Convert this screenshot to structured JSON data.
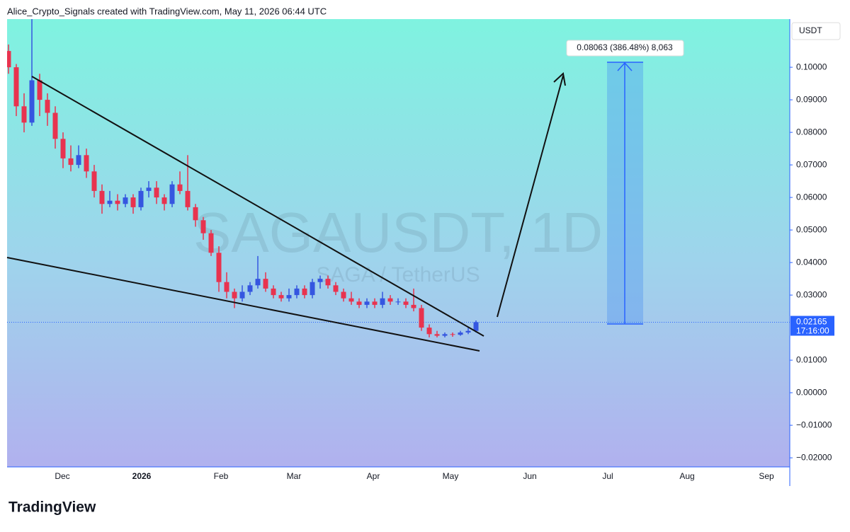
{
  "header": "Alice_Crypto_Signals created with TradingView.com, May 11, 2026 06:44 UTC",
  "logo": "TradingView",
  "chart_data": {
    "type": "candlestick",
    "watermark": "SAGAUSDT, 1D",
    "watermark_subtitle": "SAGA / TetherUS",
    "y_label": "USDT",
    "measure_label": "0.08063 (386.48%) 8,063",
    "price_line": {
      "value": 0.02165,
      "label": "0.02165",
      "time": "17:16:00"
    },
    "up_color": "#3556e0",
    "down_color": "#e8334f",
    "x_labels": [
      "Dec",
      "2026",
      "Feb",
      "Mar",
      "Apr",
      "May",
      "Jun",
      "Jul",
      "Aug",
      "Sep"
    ],
    "ylim": [
      -0.0228,
      0.1148
    ],
    "yticks": [
      {
        "value": 0.1,
        "label": "0.10000"
      },
      {
        "value": 0.09,
        "label": "0.09000"
      },
      {
        "value": 0.08,
        "label": "0.08000"
      },
      {
        "value": 0.07,
        "label": "0.07000"
      },
      {
        "value": 0.06,
        "label": "0.06000"
      },
      {
        "value": 0.05,
        "label": "0.05000"
      },
      {
        "value": 0.04,
        "label": "0.04000"
      },
      {
        "value": 0.03,
        "label": "0.03000"
      },
      {
        "value": 0.01,
        "label": "0.01000"
      },
      {
        "value": 0,
        "label": "0.00000"
      },
      {
        "value": -0.01,
        "label": "−0.01000"
      },
      {
        "value": -0.02,
        "label": "−0.02000"
      }
    ],
    "open": [
      0.105,
      0.1,
      0.088,
      0.083,
      0.096,
      0.09,
      0.086,
      0.078,
      0.072,
      0.07,
      0.073,
      0.068,
      0.062,
      0.058,
      0.059,
      0.058,
      0.06,
      0.057,
      0.062,
      0.063,
      0.06,
      0.058,
      0.064,
      0.062,
      0.057,
      0.053,
      0.049,
      0.043,
      0.034,
      0.031,
      0.029,
      0.031,
      0.033,
      0.035,
      0.032,
      0.03,
      0.029,
      0.03,
      0.032,
      0.03,
      0.034,
      0.035,
      0.033,
      0.031,
      0.029,
      0.028,
      0.027,
      0.028,
      0.027,
      0.029,
      0.028,
      0.028,
      0.027,
      0.026,
      0.02,
      0.018,
      0.0175,
      0.018,
      0.0178,
      0.0185,
      0.019
    ],
    "high": [
      0.107,
      0.101,
      0.092,
      0.125,
      0.098,
      0.092,
      0.088,
      0.08,
      0.076,
      0.076,
      0.075,
      0.07,
      0.064,
      0.062,
      0.061,
      0.061,
      0.061,
      0.063,
      0.065,
      0.065,
      0.061,
      0.065,
      0.068,
      0.073,
      0.058,
      0.054,
      0.05,
      0.045,
      0.037,
      0.032,
      0.033,
      0.034,
      0.042,
      0.037,
      0.033,
      0.031,
      0.032,
      0.033,
      0.033,
      0.035,
      0.036,
      0.036,
      0.034,
      0.032,
      0.031,
      0.029,
      0.029,
      0.029,
      0.031,
      0.03,
      0.029,
      0.029,
      0.032,
      0.027,
      0.021,
      0.019,
      0.0185,
      0.0185,
      0.019,
      0.02,
      0.0222
    ],
    "low": [
      0.098,
      0.085,
      0.08,
      0.082,
      0.085,
      0.082,
      0.075,
      0.069,
      0.068,
      0.069,
      0.066,
      0.06,
      0.055,
      0.057,
      0.056,
      0.057,
      0.055,
      0.056,
      0.06,
      0.058,
      0.056,
      0.057,
      0.061,
      0.056,
      0.051,
      0.047,
      0.042,
      0.031,
      0.029,
      0.026,
      0.028,
      0.03,
      0.032,
      0.031,
      0.029,
      0.028,
      0.028,
      0.029,
      0.029,
      0.029,
      0.032,
      0.032,
      0.03,
      0.028,
      0.027,
      0.026,
      0.026,
      0.026,
      0.026,
      0.027,
      0.027,
      0.026,
      0.025,
      0.019,
      0.017,
      0.017,
      0.017,
      0.0172,
      0.0175,
      0.018,
      0.0185
    ],
    "close": [
      0.1,
      0.088,
      0.083,
      0.096,
      0.09,
      0.086,
      0.078,
      0.072,
      0.07,
      0.073,
      0.068,
      0.062,
      0.058,
      0.059,
      0.058,
      0.06,
      0.057,
      0.062,
      0.063,
      0.06,
      0.058,
      0.064,
      0.062,
      0.057,
      0.053,
      0.049,
      0.043,
      0.034,
      0.031,
      0.029,
      0.031,
      0.033,
      0.035,
      0.032,
      0.03,
      0.029,
      0.03,
      0.032,
      0.03,
      0.034,
      0.035,
      0.033,
      0.031,
      0.029,
      0.028,
      0.027,
      0.028,
      0.027,
      0.029,
      0.028,
      0.028,
      0.027,
      0.026,
      0.02,
      0.018,
      0.0175,
      0.018,
      0.0178,
      0.0185,
      0.019,
      0.02165
    ]
  }
}
